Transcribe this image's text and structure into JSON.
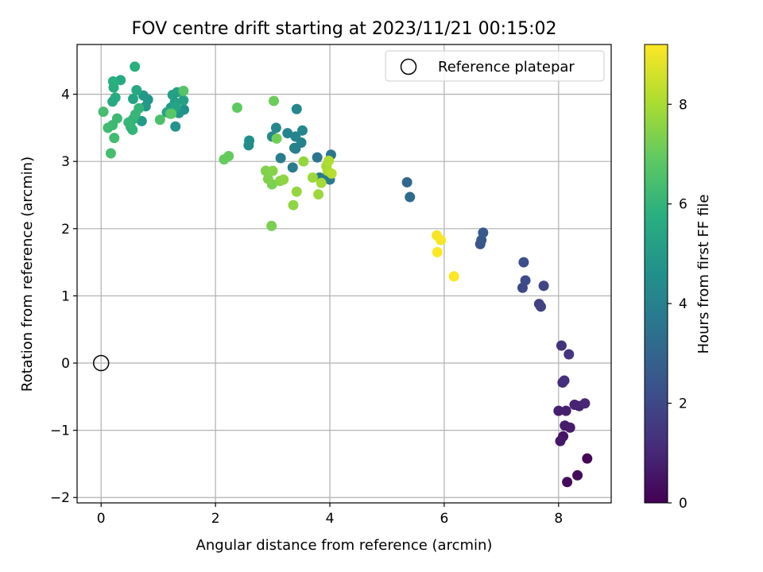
{
  "chart_data": {
    "type": "scatter",
    "title": "FOV centre drift starting at 2023/11/21 00:15:02",
    "xlabel": "Angular distance from reference (arcmin)",
    "ylabel": "Rotation from reference (arcmin)",
    "xlim": [
      -0.42,
      8.92
    ],
    "ylim": [
      -2.08,
      4.74
    ],
    "xticks": [
      0,
      2,
      4,
      6,
      8
    ],
    "yticks": [
      -2,
      -1,
      0,
      1,
      2,
      3,
      4
    ],
    "grid": true,
    "legend": {
      "position": "top-right",
      "entries": [
        "Reference platepar"
      ]
    },
    "colorbar": {
      "label": "Hours from first FF file",
      "colormap": "viridis",
      "range": [
        0,
        9.2
      ],
      "ticks": [
        0,
        2,
        4,
        6,
        8
      ]
    },
    "reference_point": {
      "x": 0,
      "y": 0,
      "label": "Reference platepar"
    },
    "series": [
      {
        "points": [
          [
            8.5,
            -1.42,
            0.1
          ],
          [
            8.33,
            -1.67,
            0.2
          ],
          [
            8.15,
            -1.77,
            0.3
          ],
          [
            8.08,
            -1.09,
            0.5
          ],
          [
            8.03,
            -1.16,
            0.6
          ],
          [
            8.2,
            -0.96,
            0.7
          ],
          [
            8.11,
            -0.93,
            0.7
          ],
          [
            8.0,
            -0.71,
            0.8
          ],
          [
            8.13,
            -0.71,
            0.8
          ],
          [
            8.28,
            -0.62,
            0.9
          ],
          [
            8.36,
            -0.64,
            0.9
          ],
          [
            8.46,
            -0.6,
            1.0
          ],
          [
            8.07,
            -0.29,
            1.1
          ],
          [
            8.1,
            -0.26,
            1.2
          ],
          [
            8.05,
            0.26,
            1.3
          ],
          [
            8.18,
            0.13,
            1.4
          ],
          [
            7.69,
            0.84,
            1.8
          ],
          [
            7.66,
            0.88,
            1.8
          ],
          [
            7.74,
            1.15,
            1.9
          ],
          [
            7.37,
            1.12,
            2.0
          ],
          [
            7.42,
            1.23,
            2.1
          ],
          [
            7.39,
            1.5,
            2.2
          ],
          [
            6.63,
            1.77,
            2.4
          ],
          [
            6.65,
            1.83,
            2.5
          ],
          [
            6.68,
            1.94,
            2.6
          ],
          [
            5.35,
            2.69,
            3.1
          ],
          [
            5.4,
            2.47,
            3.2
          ],
          [
            3.78,
            3.06,
            3.6
          ],
          [
            4.02,
            3.1,
            3.6
          ],
          [
            3.82,
            2.76,
            3.7
          ],
          [
            4.0,
            2.73,
            3.7
          ],
          [
            3.96,
            2.78,
            3.8
          ],
          [
            3.35,
            2.91,
            3.8
          ],
          [
            3.14,
            3.05,
            3.9
          ],
          [
            3.4,
            3.19,
            3.9
          ],
          [
            3.38,
            3.2,
            4.0
          ],
          [
            3.5,
            3.28,
            4.0
          ],
          [
            3.26,
            3.42,
            4.1
          ],
          [
            3.4,
            3.37,
            4.1
          ],
          [
            3.52,
            3.46,
            4.2
          ],
          [
            3.42,
            3.78,
            4.2
          ],
          [
            3.06,
            3.5,
            4.3
          ],
          [
            2.99,
            3.37,
            4.3
          ],
          [
            2.58,
            3.24,
            4.4
          ],
          [
            2.59,
            3.31,
            4.5
          ],
          [
            1.45,
            3.77,
            4.6
          ],
          [
            1.36,
            3.72,
            4.7
          ],
          [
            1.3,
            3.52,
            4.7
          ],
          [
            0.82,
            3.92,
            4.8
          ],
          [
            0.78,
            3.82,
            4.9
          ],
          [
            0.74,
            3.98,
            4.9
          ],
          [
            0.71,
            3.6,
            5.0
          ],
          [
            1.22,
            3.8,
            5.0
          ],
          [
            1.29,
            3.88,
            5.1
          ],
          [
            1.25,
            3.99,
            5.1
          ],
          [
            1.33,
            4.03,
            5.2
          ],
          [
            1.44,
            3.91,
            5.2
          ],
          [
            1.15,
            3.73,
            5.3
          ],
          [
            1.31,
            3.81,
            5.4
          ],
          [
            0.56,
            3.93,
            5.4
          ],
          [
            0.62,
            4.06,
            5.5
          ],
          [
            0.2,
            3.89,
            5.5
          ],
          [
            0.25,
            3.95,
            5.6
          ],
          [
            0.34,
            4.21,
            5.6
          ],
          [
            0.22,
            4.1,
            5.7
          ],
          [
            0.21,
            4.19,
            5.8
          ],
          [
            0.59,
            4.41,
            5.8
          ],
          [
            0.56,
            3.63,
            5.9
          ],
          [
            0.52,
            3.51,
            5.9
          ],
          [
            0.55,
            3.47,
            6.0
          ],
          [
            0.66,
            3.79,
            6.0
          ],
          [
            0.48,
            3.58,
            6.1
          ],
          [
            0.6,
            3.7,
            6.1
          ],
          [
            0.28,
            3.64,
            6.2
          ],
          [
            0.2,
            3.54,
            6.2
          ],
          [
            0.12,
            3.5,
            6.3
          ],
          [
            0.23,
            3.35,
            6.3
          ],
          [
            0.17,
            3.12,
            6.4
          ],
          [
            0.04,
            3.74,
            6.4
          ],
          [
            1.03,
            3.62,
            6.5
          ],
          [
            1.21,
            3.71,
            6.6
          ],
          [
            1.44,
            4.05,
            6.7
          ],
          [
            1.23,
            3.71,
            6.8
          ],
          [
            2.38,
            3.8,
            6.9
          ],
          [
            2.15,
            3.03,
            7.0
          ],
          [
            2.23,
            3.08,
            7.0
          ],
          [
            3.02,
            3.9,
            7.1
          ],
          [
            3.07,
            3.34,
            7.2
          ],
          [
            2.98,
            2.04,
            7.3
          ],
          [
            2.99,
            2.66,
            7.3
          ],
          [
            2.92,
            2.74,
            7.4
          ],
          [
            2.88,
            2.86,
            7.4
          ],
          [
            3.0,
            2.86,
            7.5
          ],
          [
            3.13,
            2.71,
            7.5
          ],
          [
            3.19,
            2.73,
            7.6
          ],
          [
            3.36,
            2.35,
            7.6
          ],
          [
            3.42,
            2.55,
            7.7
          ],
          [
            3.54,
            3.0,
            7.7
          ],
          [
            3.7,
            2.76,
            7.8
          ],
          [
            3.8,
            2.51,
            7.8
          ],
          [
            3.85,
            2.68,
            7.9
          ],
          [
            3.94,
            2.93,
            7.9
          ],
          [
            3.96,
            2.86,
            8.0
          ],
          [
            3.98,
            3.01,
            8.1
          ],
          [
            4.03,
            2.82,
            8.2
          ],
          [
            5.87,
            1.9,
            9.1
          ],
          [
            5.94,
            1.83,
            9.1
          ],
          [
            5.88,
            1.65,
            9.2
          ],
          [
            6.17,
            1.29,
            9.2
          ]
        ]
      }
    ]
  }
}
